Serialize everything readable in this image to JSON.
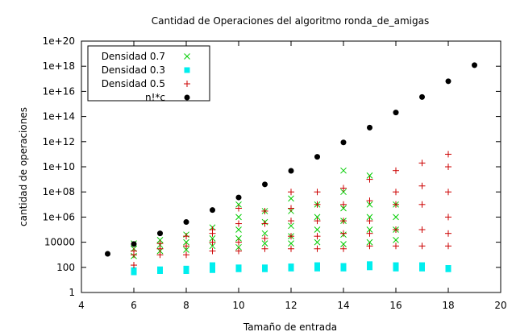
{
  "chart_data": {
    "type": "scatter",
    "title": "Cantidad de Operaciones del algoritmo ronda_de_amigas",
    "xlabel": "Tamaño de entrada",
    "ylabel": "cantidad de operaciones",
    "xlim": [
      4,
      20
    ],
    "ylim": [
      1,
      1e+20
    ],
    "yscale": "log",
    "grid": false,
    "legend_position": "top-left",
    "x_ticks": [
      "4",
      "6",
      "8",
      "10",
      "12",
      "14",
      "16",
      "18",
      "20"
    ],
    "y_ticks": [
      "1",
      "100",
      "10000",
      "1e+06",
      "1e+08",
      "1e+10",
      "1e+12",
      "1e+14",
      "1e+16",
      "1e+18",
      "1e+20"
    ],
    "series": [
      {
        "name": "Densidad 0.7",
        "marker": "x",
        "color": "#00cc00",
        "points": [
          [
            6,
            800
          ],
          [
            6,
            3000
          ],
          [
            6,
            8000
          ],
          [
            7,
            2000
          ],
          [
            7,
            6000
          ],
          [
            7,
            15000
          ],
          [
            8,
            2500
          ],
          [
            8,
            10000
          ],
          [
            8,
            40000
          ],
          [
            9,
            5000
          ],
          [
            9,
            20000
          ],
          [
            9,
            150000
          ],
          [
            10,
            4000
          ],
          [
            10,
            20000
          ],
          [
            10,
            100000
          ],
          [
            10,
            1000000
          ],
          [
            10,
            10000000
          ],
          [
            11,
            8000
          ],
          [
            11,
            50000
          ],
          [
            11,
            400000
          ],
          [
            11,
            3000000
          ],
          [
            12,
            8000
          ],
          [
            12,
            30000
          ],
          [
            12,
            200000
          ],
          [
            12,
            3000000
          ],
          [
            12,
            30000000
          ],
          [
            13,
            10000
          ],
          [
            13,
            100000
          ],
          [
            13,
            1000000
          ],
          [
            13,
            10000000
          ],
          [
            14,
            7000
          ],
          [
            14,
            40000
          ],
          [
            14,
            500000
          ],
          [
            14,
            5000000
          ],
          [
            14,
            100000000
          ],
          [
            14,
            5000000000
          ],
          [
            15,
            10000
          ],
          [
            15,
            100000
          ],
          [
            15,
            1000000
          ],
          [
            15,
            10000000
          ],
          [
            15,
            2000000000
          ],
          [
            16,
            15000
          ],
          [
            16,
            100000
          ],
          [
            16,
            1000000
          ],
          [
            16,
            10000000
          ]
        ]
      },
      {
        "name": "Densidad 0.3",
        "marker": "square",
        "color": "#00eeee",
        "points": [
          [
            6,
            40
          ],
          [
            6,
            60
          ],
          [
            7,
            50
          ],
          [
            7,
            70
          ],
          [
            8,
            50
          ],
          [
            8,
            80
          ],
          [
            9,
            60
          ],
          [
            9,
            150
          ],
          [
            10,
            70
          ],
          [
            10,
            100
          ],
          [
            11,
            70
          ],
          [
            11,
            100
          ],
          [
            12,
            80
          ],
          [
            12,
            120
          ],
          [
            13,
            80
          ],
          [
            13,
            150
          ],
          [
            14,
            80
          ],
          [
            14,
            130
          ],
          [
            15,
            100
          ],
          [
            15,
            180
          ],
          [
            16,
            80
          ],
          [
            16,
            150
          ],
          [
            17,
            80
          ],
          [
            17,
            150
          ],
          [
            18,
            70
          ],
          [
            18,
            90
          ]
        ]
      },
      {
        "name": "Densidad 0.5",
        "marker": "+",
        "color": "#cc0000",
        "points": [
          [
            6,
            150
          ],
          [
            6,
            1000
          ],
          [
            6,
            2000
          ],
          [
            7,
            1000
          ],
          [
            7,
            3000
          ],
          [
            7,
            8000
          ],
          [
            8,
            1000
          ],
          [
            8,
            5000
          ],
          [
            8,
            30000
          ],
          [
            9,
            2000
          ],
          [
            9,
            10000
          ],
          [
            9,
            50000
          ],
          [
            9,
            100000
          ],
          [
            10,
            2000
          ],
          [
            10,
            10000
          ],
          [
            10,
            300000
          ],
          [
            10,
            5000000
          ],
          [
            11,
            3000
          ],
          [
            11,
            20000
          ],
          [
            11,
            300000
          ],
          [
            11,
            3000000
          ],
          [
            12,
            3000
          ],
          [
            12,
            30000
          ],
          [
            12,
            500000
          ],
          [
            12,
            5000000
          ],
          [
            12,
            100000000
          ],
          [
            13,
            3000
          ],
          [
            13,
            30000
          ],
          [
            13,
            500000
          ],
          [
            13,
            10000000
          ],
          [
            13,
            100000000
          ],
          [
            14,
            3000
          ],
          [
            14,
            50000
          ],
          [
            14,
            500000
          ],
          [
            14,
            10000000
          ],
          [
            14,
            200000000
          ],
          [
            15,
            5000
          ],
          [
            15,
            50000
          ],
          [
            15,
            500000
          ],
          [
            15,
            20000000
          ],
          [
            15,
            1000000000
          ],
          [
            16,
            5000
          ],
          [
            16,
            100000
          ],
          [
            16,
            10000000
          ],
          [
            16,
            100000000
          ],
          [
            16,
            5000000000
          ],
          [
            17,
            5000
          ],
          [
            17,
            100000
          ],
          [
            17,
            10000000
          ],
          [
            17,
            300000000
          ],
          [
            17,
            20000000000
          ],
          [
            18,
            5000
          ],
          [
            18,
            50000
          ],
          [
            18,
            1000000
          ],
          [
            18,
            100000000
          ],
          [
            18,
            10000000000
          ],
          [
            18,
            100000000000
          ]
        ]
      },
      {
        "name": "n!*c",
        "marker": "dot",
        "color": "#000000",
        "points": [
          [
            5,
            1200
          ],
          [
            6,
            7200
          ],
          [
            7,
            50400
          ],
          [
            8,
            403200
          ],
          [
            9,
            3628800
          ],
          [
            10,
            36288000
          ],
          [
            11,
            399168000
          ],
          [
            12,
            4790016000
          ],
          [
            13,
            62270208000
          ],
          [
            14,
            871782912000
          ],
          [
            15,
            13076743680000
          ],
          [
            16,
            209227898880000
          ],
          [
            17,
            3556874280960000
          ],
          [
            18,
            64023737057280000
          ],
          [
            19,
            1216451004088320000
          ]
        ]
      }
    ]
  }
}
